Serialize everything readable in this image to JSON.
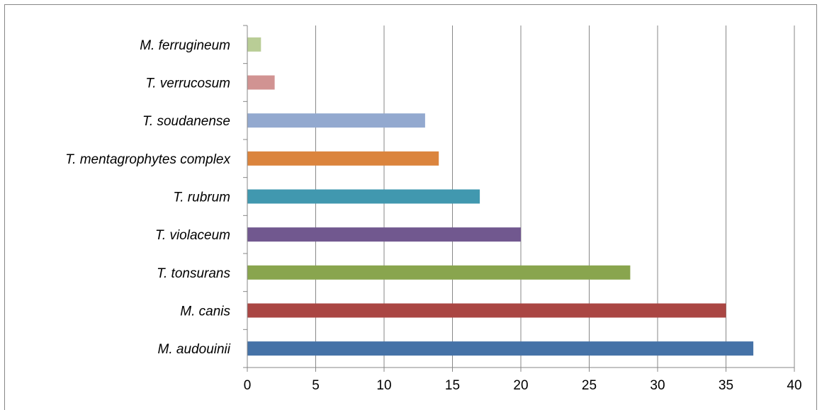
{
  "chart_data": {
    "type": "bar",
    "orientation": "horizontal",
    "categories": [
      "M. audouinii",
      "M. canis",
      "T. tonsurans",
      "T. violaceum",
      "T. rubrum",
      "T. mentagrophytes complex",
      "T. soudanense",
      "T. verrucosum",
      "M. ferrugineum"
    ],
    "values": [
      37,
      35,
      28,
      20,
      17,
      14,
      13,
      2,
      1
    ],
    "colors": [
      "#4572A7",
      "#AA4643",
      "#89A54E",
      "#71588F",
      "#4198AF",
      "#DB843D",
      "#93A9CF",
      "#D19392",
      "#B9CD96"
    ],
    "xlim": [
      0,
      40
    ],
    "xticks": [
      "0",
      "5",
      "10",
      "15",
      "20",
      "25",
      "30",
      "35",
      "40"
    ],
    "grid": true,
    "legend": "none",
    "title": "",
    "xlabel": "",
    "ylabel": ""
  }
}
